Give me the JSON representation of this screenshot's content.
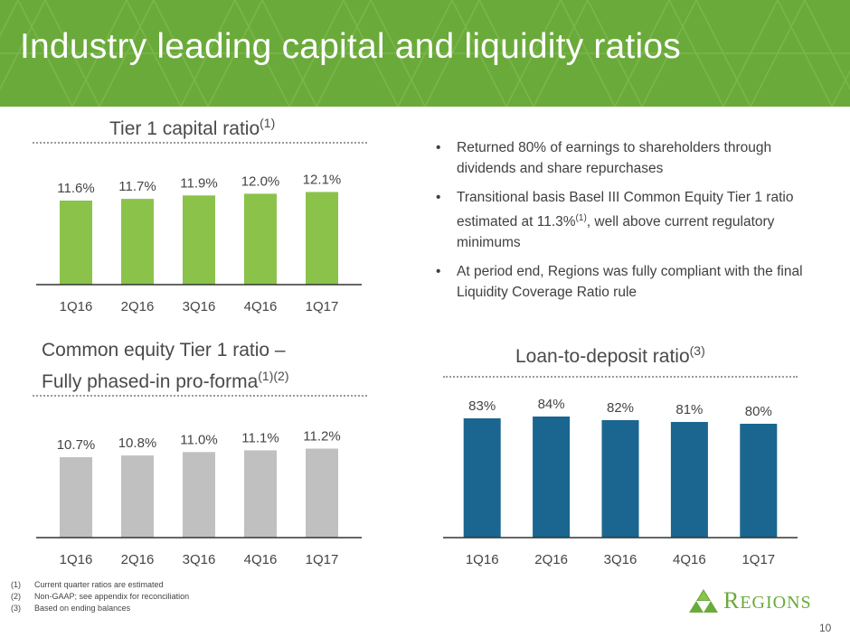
{
  "slide": {
    "title": "Industry leading capital and liquidity ratios",
    "page_number": "10"
  },
  "colors": {
    "banner": "#6aaa3a",
    "tier1_bars": "#8bc34a",
    "cet1_bars": "#c0c0c0",
    "ltd_bars": "#1a6690"
  },
  "charts": {
    "tier1": {
      "title": "Tier 1 capital ratio",
      "sup": "(1)"
    },
    "cet1": {
      "title_line1": "Common equity Tier 1 ratio –",
      "title_line2": "Fully phased-in pro-forma",
      "sup": "(1)(2)"
    },
    "ltd": {
      "title": "Loan-to-deposit ratio",
      "sup": "(3)"
    }
  },
  "bullets": [
    {
      "text": "Returned 80% of earnings to shareholders through dividends and share repurchases"
    },
    {
      "pre": "Transitional basis Basel III Common Equity Tier 1 ratio estimated at 11.3%",
      "sup": "(1)",
      "post": ", well above current regulatory minimums"
    },
    {
      "text": "At period end, Regions was fully compliant with the final Liquidity Coverage Ratio rule"
    }
  ],
  "footnotes": [
    {
      "num": "(1)",
      "text": "Current quarter ratios are estimated"
    },
    {
      "num": "(2)",
      "text": "Non-GAAP; see appendix for reconciliation"
    },
    {
      "num": "(3)",
      "text": "Based on ending balances"
    }
  ],
  "logo": {
    "text_first": "R",
    "text_rest": "EGIONS"
  },
  "chart_data": [
    {
      "type": "bar",
      "title": "Tier 1 capital ratio(1)",
      "categories": [
        "1Q16",
        "2Q16",
        "3Q16",
        "4Q16",
        "1Q17"
      ],
      "values": [
        11.6,
        11.7,
        11.9,
        12.0,
        12.1
      ],
      "labels": [
        "11.6%",
        "11.7%",
        "11.9%",
        "12.0%",
        "12.1%"
      ],
      "unit": "%",
      "grid": false
    },
    {
      "type": "bar",
      "title": "Common equity Tier 1 ratio – Fully phased-in pro-forma(1)(2)",
      "categories": [
        "1Q16",
        "2Q16",
        "3Q16",
        "4Q16",
        "1Q17"
      ],
      "values": [
        10.7,
        10.8,
        11.0,
        11.1,
        11.2
      ],
      "labels": [
        "10.7%",
        "10.8%",
        "11.0%",
        "11.1%",
        "11.2%"
      ],
      "unit": "%",
      "grid": false
    },
    {
      "type": "bar",
      "title": "Loan-to-deposit ratio(3)",
      "categories": [
        "1Q16",
        "2Q16",
        "3Q16",
        "4Q16",
        "1Q17"
      ],
      "values": [
        83,
        84,
        82,
        81,
        80
      ],
      "labels": [
        "83%",
        "84%",
        "82%",
        "81%",
        "80%"
      ],
      "unit": "%",
      "grid": false
    }
  ]
}
